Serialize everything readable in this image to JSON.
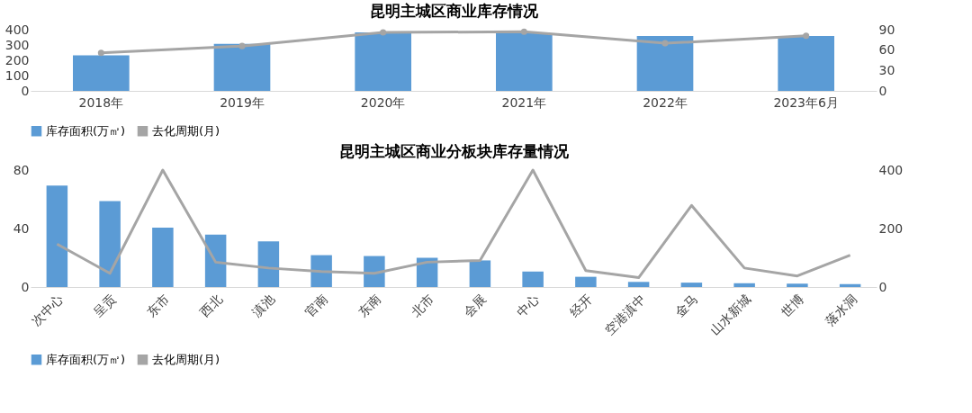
{
  "chart_data": [
    {
      "type": "bar",
      "title": "昆明主城区商业库存情况",
      "categories": [
        "2018年",
        "2019年",
        "2020年",
        "2021年",
        "2022年",
        "2023年6月"
      ],
      "series": [
        {
          "name": "库存面积(万㎡)",
          "color": "#5b9bd5",
          "values": [
            232,
            307,
            383,
            377,
            359,
            359
          ]
        },
        {
          "name": "去化周期(月)",
          "type": "line",
          "axis": "y2",
          "color": "#a5a5a5",
          "values": [
            56,
            66,
            86,
            87,
            70,
            81
          ]
        }
      ],
      "ylim": [
        0,
        400
      ],
      "yticks": [
        0,
        100,
        200,
        300,
        400
      ],
      "y2lim": [
        0,
        90
      ],
      "y2ticks": [
        0,
        30,
        60,
        90
      ],
      "marker": "circle",
      "grid": false,
      "legend": "bottom"
    },
    {
      "type": "bar",
      "title": "昆明主城区商业分板块库存量情况",
      "categories": [
        "次中心",
        "呈贡",
        "东市",
        "西北",
        "滇池",
        "官南",
        "东南",
        "北市",
        "会展",
        "中心",
        "经开",
        "空港滇中",
        "金马",
        "山水新城",
        "世博",
        "落水洞"
      ],
      "series": [
        {
          "name": "库存面积(万㎡)",
          "color": "#5b9bd5",
          "values": [
            69.4,
            58.8,
            40.6,
            35.9,
            31.2,
            21.8,
            21.2,
            20,
            18.2,
            10.6,
            7,
            3.5,
            3,
            2.6,
            2.3,
            2
          ]
        },
        {
          "name": "去化周期(月)",
          "type": "line",
          "axis": "y2",
          "color": "#a5a5a5",
          "values": [
            147,
            47,
            400,
            85,
            65,
            53,
            47,
            85,
            91,
            400,
            56,
            32,
            279,
            65,
            38,
            109
          ]
        }
      ],
      "ylim": [
        0,
        80
      ],
      "yticks": [
        0,
        40,
        80
      ],
      "y2lim": [
        0,
        400
      ],
      "y2ticks": [
        0,
        200,
        400
      ],
      "grid": false,
      "legend": "bottom"
    }
  ]
}
